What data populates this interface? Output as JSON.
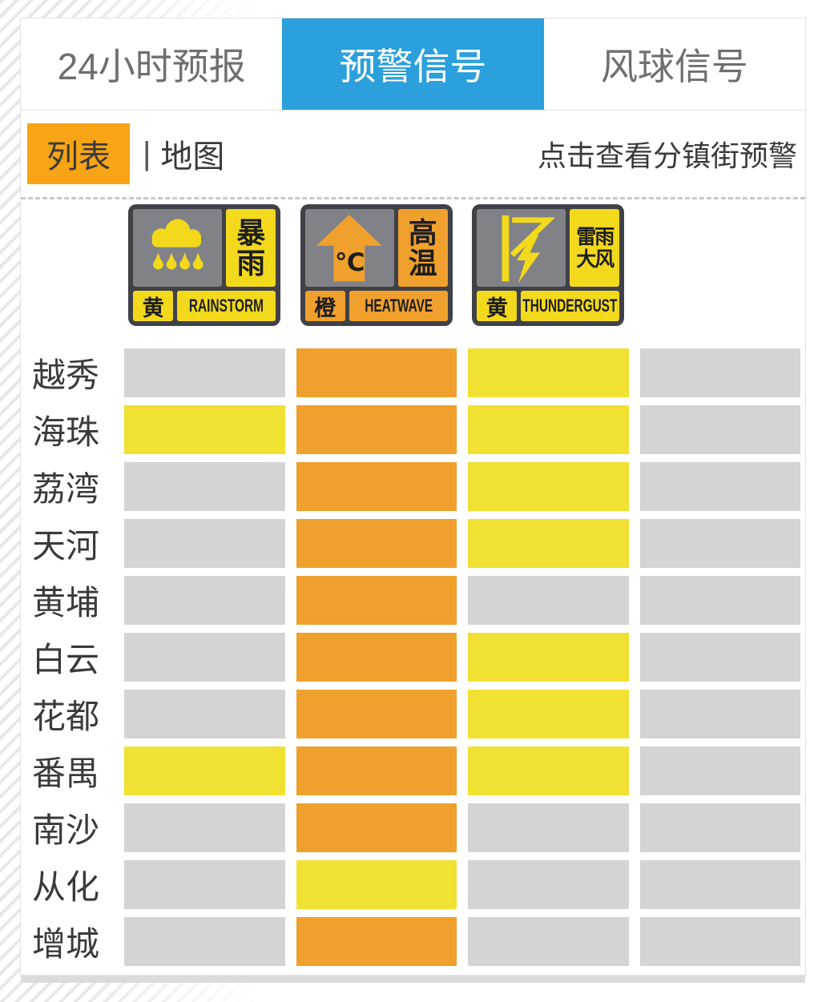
{
  "colors": {
    "active_tab_bg": "#2BA0DC",
    "list_toggle_bg": "#F7A416",
    "sign_frame": "#3F4146",
    "sign_panel": "#808288",
    "sign_yellow": "#F2D91C",
    "sign_orange": "#F0A12D",
    "signal": {
      "none": "#D4D4D4",
      "yellow": "#F0E132",
      "orange": "#F0A02C"
    }
  },
  "tabs": [
    {
      "name": "tab-24h-forecast",
      "label": "24小时预报",
      "active": false
    },
    {
      "name": "tab-warning-signal",
      "label": "预警信号",
      "active": true
    },
    {
      "name": "tab-wind-signal",
      "label": "风球信号",
      "active": false
    }
  ],
  "view_toggle": {
    "list_label": "列表",
    "divider": "|",
    "map_label": "地图"
  },
  "hint": "点击查看分镇街预警",
  "legend": [
    {
      "glyph": "rain-cloud-icon",
      "cn_lines": [
        "暴",
        "雨"
      ],
      "level": "黄",
      "name_en": "RAINSTORM",
      "theme": "yellow"
    },
    {
      "glyph": "heat-arrow-icon",
      "cn_lines": [
        "高",
        "温"
      ],
      "level": "橙",
      "name_en": "HEATWAVE",
      "theme": "orange"
    },
    {
      "glyph": "thunder-flag-icon",
      "cn_lines": [
        "雷雨",
        "大风"
      ],
      "level": "黄",
      "name_en": "THUNDERGUST",
      "theme": "yellow"
    }
  ],
  "warning_table": {
    "column_signals": [
      "暴雨",
      "高温",
      "雷雨大风",
      ""
    ],
    "rows": [
      {
        "district": "越秀",
        "signals": [
          "none",
          "orange",
          "yellow",
          "none"
        ]
      },
      {
        "district": "海珠",
        "signals": [
          "yellow",
          "orange",
          "yellow",
          "none"
        ]
      },
      {
        "district": "荔湾",
        "signals": [
          "none",
          "orange",
          "yellow",
          "none"
        ]
      },
      {
        "district": "天河",
        "signals": [
          "none",
          "orange",
          "yellow",
          "none"
        ]
      },
      {
        "district": "黄埔",
        "signals": [
          "none",
          "orange",
          "none",
          "none"
        ]
      },
      {
        "district": "白云",
        "signals": [
          "none",
          "orange",
          "yellow",
          "none"
        ]
      },
      {
        "district": "花都",
        "signals": [
          "none",
          "orange",
          "yellow",
          "none"
        ]
      },
      {
        "district": "番禺",
        "signals": [
          "yellow",
          "orange",
          "yellow",
          "none"
        ]
      },
      {
        "district": "南沙",
        "signals": [
          "none",
          "orange",
          "none",
          "none"
        ]
      },
      {
        "district": "从化",
        "signals": [
          "none",
          "yellow",
          "none",
          "none"
        ]
      },
      {
        "district": "增城",
        "signals": [
          "none",
          "orange",
          "none",
          "none"
        ]
      }
    ]
  }
}
